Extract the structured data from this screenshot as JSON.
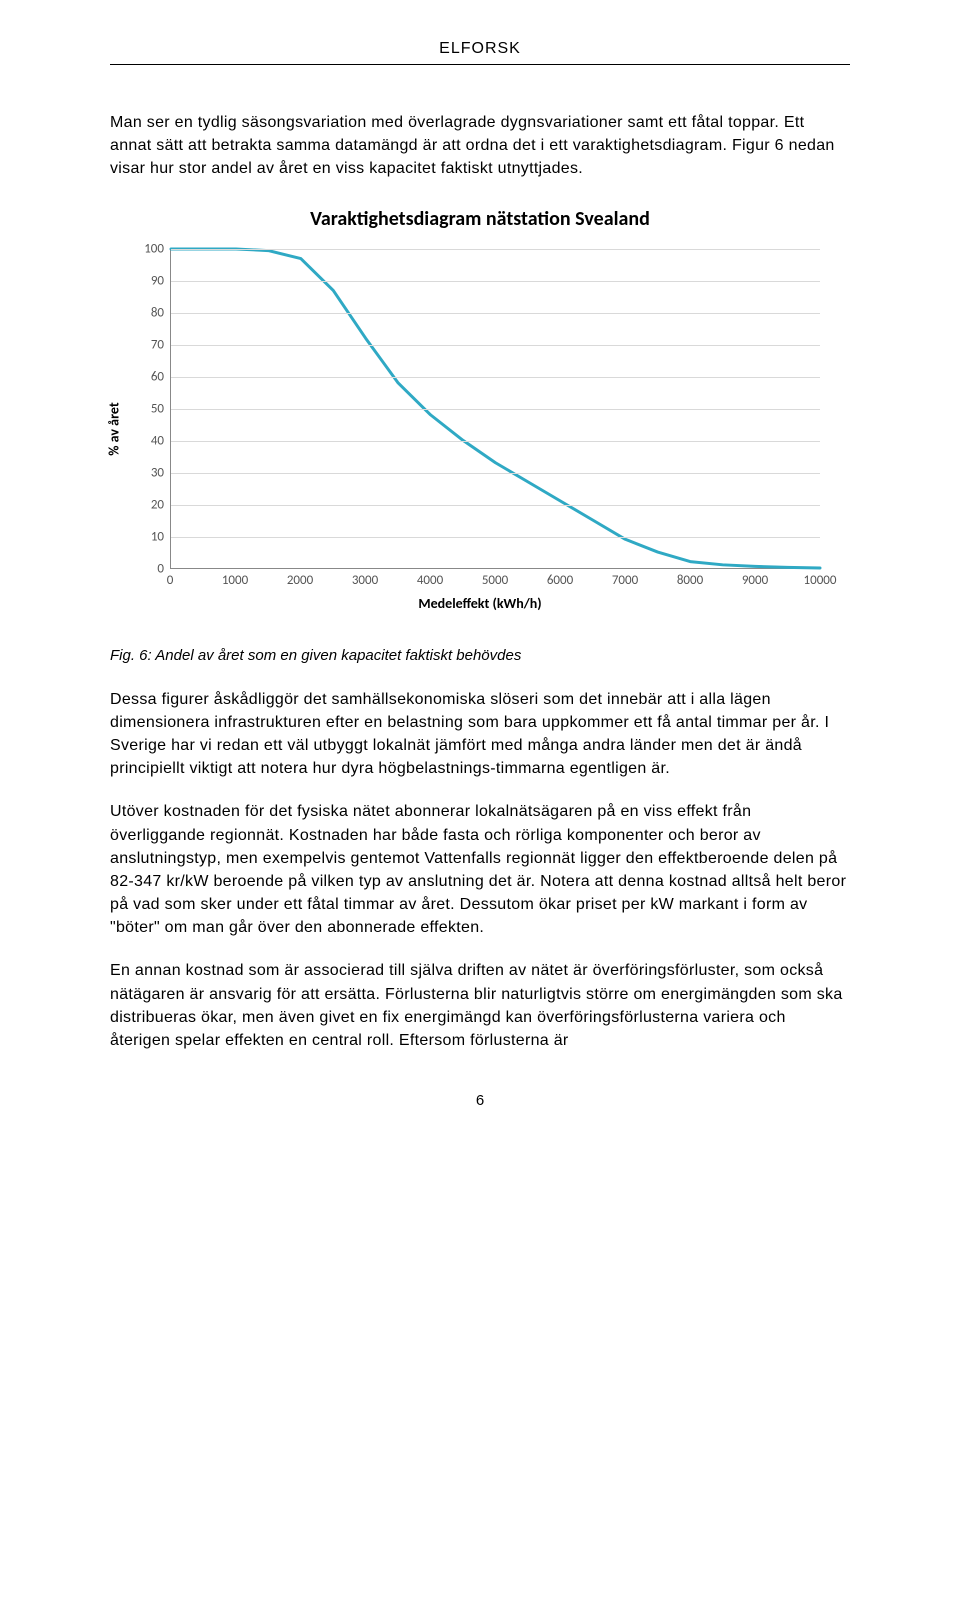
{
  "header": {
    "org": "ELFORSK"
  },
  "intro_paragraph": "Man ser en tydlig säsongsvariation med överlagrade dygnsvariationer samt ett fåtal toppar. Ett annat sätt att betrakta samma datamängd är att ordna det i ett varaktighetsdiagram. Figur 6 nedan visar hur stor andel av året en viss kapacitet faktiskt utnyttjades.",
  "chart": {
    "type": "line",
    "title": "Varaktighetsdiagram nätstation Svealand",
    "xlabel": "Medeleffekt (kWh/h)",
    "ylabel": "% av året",
    "xlim": [
      0,
      10000
    ],
    "ylim": [
      0,
      100
    ],
    "xtick_step": 1000,
    "ytick_step": 10,
    "xticks": [
      0,
      1000,
      2000,
      3000,
      4000,
      5000,
      6000,
      7000,
      8000,
      9000,
      10000
    ],
    "yticks": [
      0,
      10,
      20,
      30,
      40,
      50,
      60,
      70,
      80,
      90,
      100
    ],
    "line_color": "#2fa9c4",
    "line_width": 3,
    "grid_color": "#d9d9d9",
    "axis_color": "#888888",
    "background_color": "#ffffff",
    "tick_font_color": "#555555",
    "tick_fontsize": 13,
    "title_fontsize": 20,
    "label_fontsize": 14,
    "series_x": [
      0,
      500,
      1000,
      1500,
      2000,
      2500,
      3000,
      3500,
      4000,
      4500,
      5000,
      5500,
      6000,
      6500,
      7000,
      7500,
      8000,
      8500,
      9000,
      9500,
      10000
    ],
    "series_y": [
      100,
      100,
      100,
      99.5,
      97,
      87,
      72,
      58,
      48,
      40,
      33,
      27,
      21,
      15,
      9,
      5,
      2,
      1,
      0.5,
      0.2,
      0
    ]
  },
  "caption": "Fig. 6: Andel av året som en given kapacitet faktiskt behövdes",
  "paragraphs": [
    "Dessa figurer åskådliggör det samhällsekonomiska slöseri som det innebär att i alla lägen dimensionera infrastrukturen efter en belastning som bara uppkommer ett få antal timmar per år. I Sverige har vi redan ett väl utbyggt lokalnät jämfört med många andra länder men det är ändå principiellt viktigt att notera hur dyra högbelastnings-timmarna egentligen är.",
    "Utöver kostnaden för det fysiska nätet abonnerar lokalnätsägaren på en viss effekt från överliggande regionnät. Kostnaden har både fasta och rörliga komponenter och beror av anslutningstyp, men exempelvis gentemot Vattenfalls regionnät ligger den effektberoende delen på 82-347 kr/kW beroende på vilken typ av anslutning det är. Notera att denna kostnad alltså helt beror på vad som sker under ett fåtal timmar av året. Dessutom ökar priset per kW markant i form av \"böter\" om man går över den abonnerade effekten.",
    "En annan kostnad som är associerad till själva driften av nätet är överföringsförluster, som också nätägaren är ansvarig för att ersätta. Förlusterna blir naturligtvis större om energimängden som ska distribueras ökar, men även givet en fix energimängd kan överföringsförlusterna variera och återigen spelar effekten en central roll. Eftersom förlusterna är"
  ],
  "page_number": "6"
}
